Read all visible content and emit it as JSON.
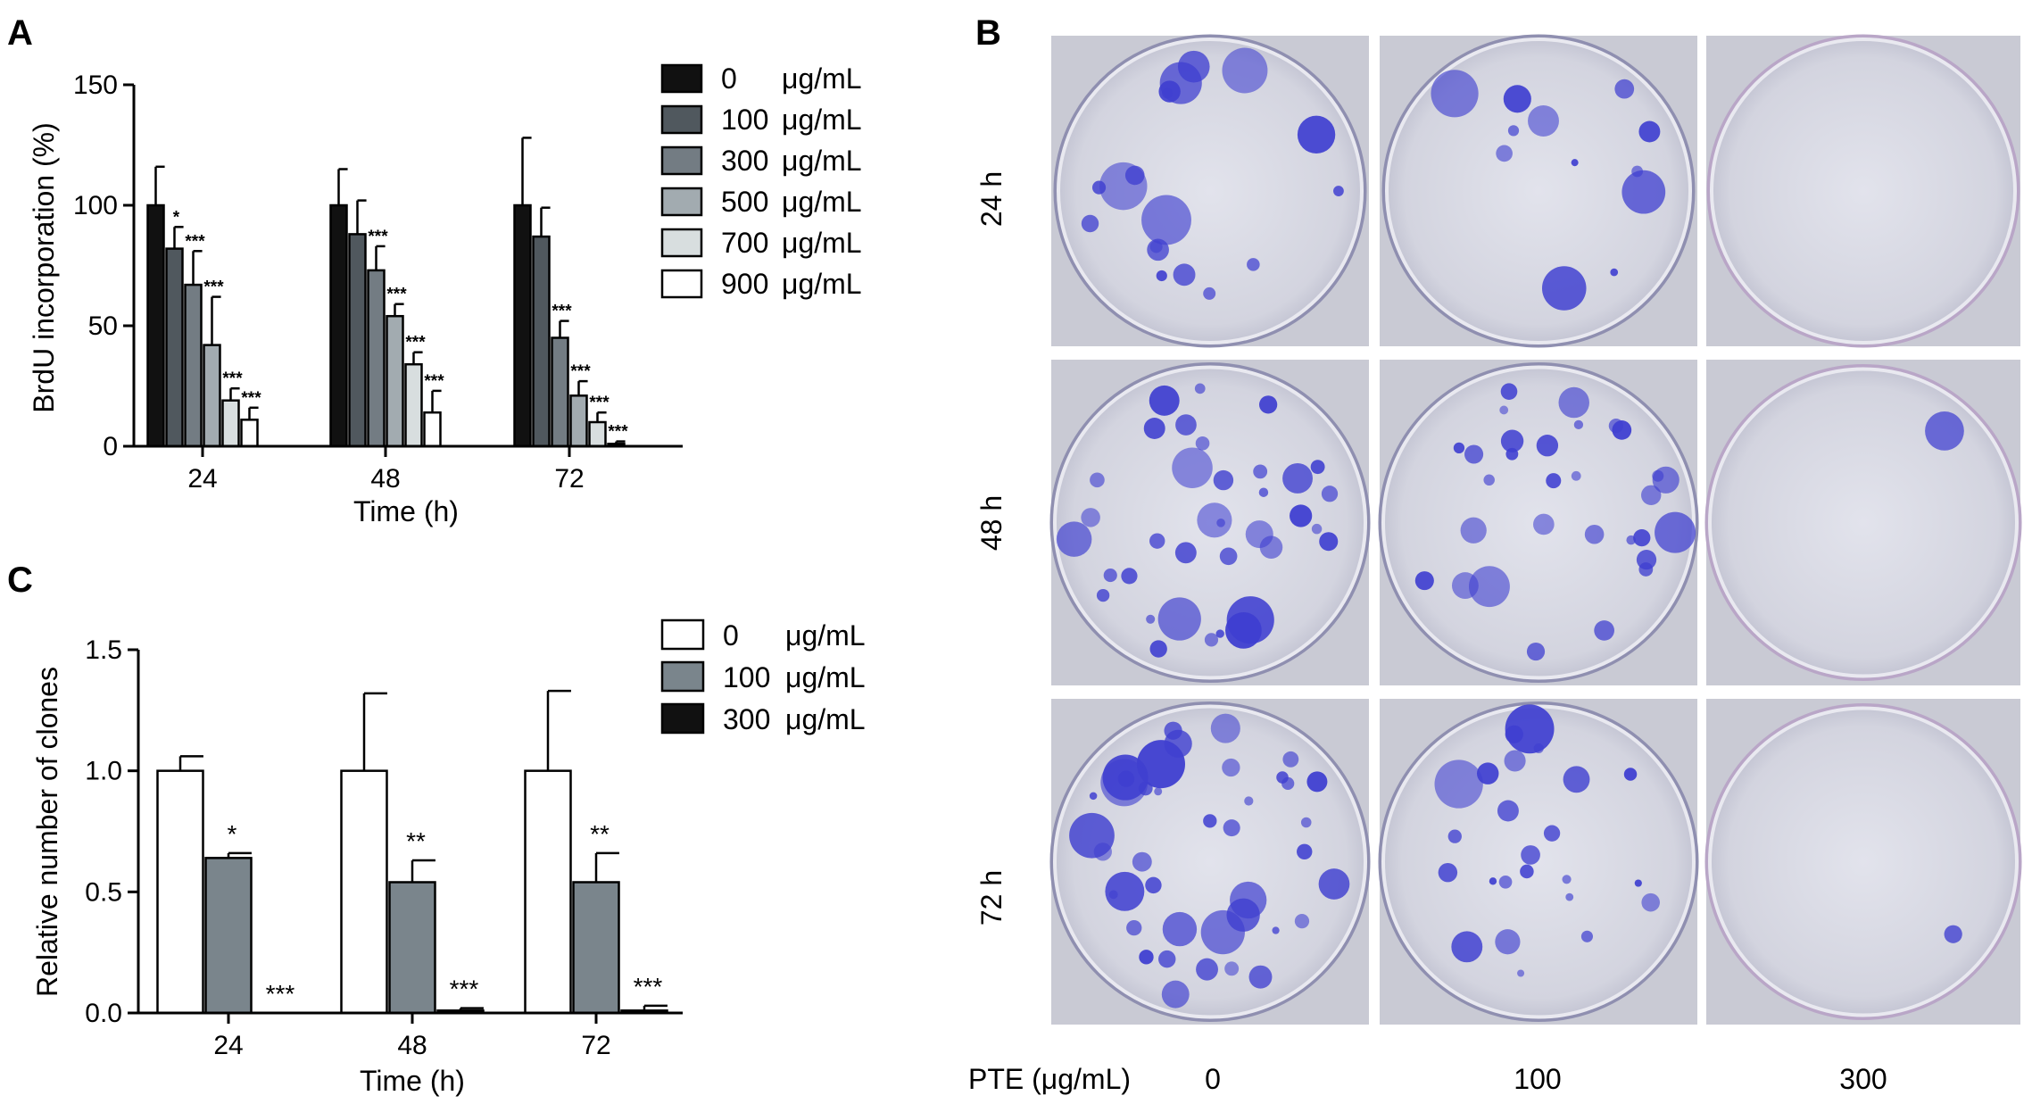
{
  "chart_data": [
    {
      "panel": "A",
      "type": "bar",
      "xlabel": "Time (h)",
      "ylabel": "BrdU incorporation (%)",
      "ylim": [
        0,
        150
      ],
      "yticks": [
        "0",
        "50",
        "100",
        "150"
      ],
      "categories": [
        "24",
        "48",
        "72"
      ],
      "legend_position": "top-right",
      "series": [
        {
          "name": "0",
          "unit": "μg/mL",
          "color": "#111111",
          "values": [
            100,
            100,
            100
          ],
          "errors": [
            16,
            15,
            28
          ],
          "stars": [
            "",
            "",
            ""
          ]
        },
        {
          "name": "100",
          "unit": "μg/mL",
          "color": "#50585e",
          "values": [
            82,
            88,
            87
          ],
          "errors": [
            9,
            14,
            12
          ],
          "stars": [
            "*",
            "",
            ""
          ]
        },
        {
          "name": "300",
          "unit": "μg/mL",
          "color": "#737c83",
          "values": [
            67,
            73,
            45
          ],
          "errors": [
            14,
            10,
            7
          ],
          "stars": [
            "***",
            "***",
            "***"
          ]
        },
        {
          "name": "500",
          "unit": "μg/mL",
          "color": "#a2abb0",
          "values": [
            42,
            54,
            21
          ],
          "errors": [
            20,
            5,
            6
          ],
          "stars": [
            "***",
            "***",
            "***"
          ]
        },
        {
          "name": "700",
          "unit": "μg/mL",
          "color": "#d8dedf",
          "values": [
            19,
            34,
            10
          ],
          "errors": [
            5,
            5,
            4
          ],
          "stars": [
            "***",
            "***",
            "***"
          ]
        },
        {
          "name": "900",
          "unit": "μg/mL",
          "color": "#ffffff",
          "values": [
            11,
            14,
            1
          ],
          "errors": [
            5,
            9,
            1
          ],
          "stars": [
            "***",
            "***",
            "***"
          ]
        }
      ]
    },
    {
      "panel": "C",
      "type": "bar",
      "xlabel": "Time (h)",
      "ylabel": "Relative number of clones",
      "ylim": [
        0,
        1.5
      ],
      "yticks": [
        "0.0",
        "0.5",
        "1.0",
        "1.5"
      ],
      "categories": [
        "24",
        "48",
        "72"
      ],
      "legend_position": "top-right",
      "series": [
        {
          "name": "0",
          "unit": "μg/mL",
          "color": "#ffffff",
          "values": [
            1.0,
            1.0,
            1.0
          ],
          "errors": [
            0.06,
            0.32,
            0.33
          ],
          "stars": [
            "",
            "",
            ""
          ]
        },
        {
          "name": "100",
          "unit": "μg/mL",
          "color": "#7a858c",
          "values": [
            0.64,
            0.54,
            0.54
          ],
          "errors": [
            0.02,
            0.09,
            0.12
          ],
          "stars": [
            "*",
            "**",
            "**"
          ]
        },
        {
          "name": "300",
          "unit": "μg/mL",
          "color": "#111111",
          "values": [
            0.0,
            0.01,
            0.01
          ],
          "errors": [
            0.0,
            0.01,
            0.02
          ],
          "stars": [
            "***",
            "***",
            "***"
          ]
        }
      ]
    }
  ],
  "panels": {
    "A": "A",
    "B": "B",
    "C": "C"
  },
  "photos": {
    "row_labels": [
      "24 h",
      "48 h",
      "72 h"
    ],
    "column_axis_label": "PTE (μg/mL)",
    "column_labels": [
      "0",
      "100",
      "300"
    ],
    "stain_color": "#3f3fd0",
    "dish_background": "#cfd0da",
    "colony_density": [
      [
        18,
        12,
        0
      ],
      [
        36,
        30,
        1
      ],
      [
        40,
        24,
        1
      ]
    ]
  }
}
